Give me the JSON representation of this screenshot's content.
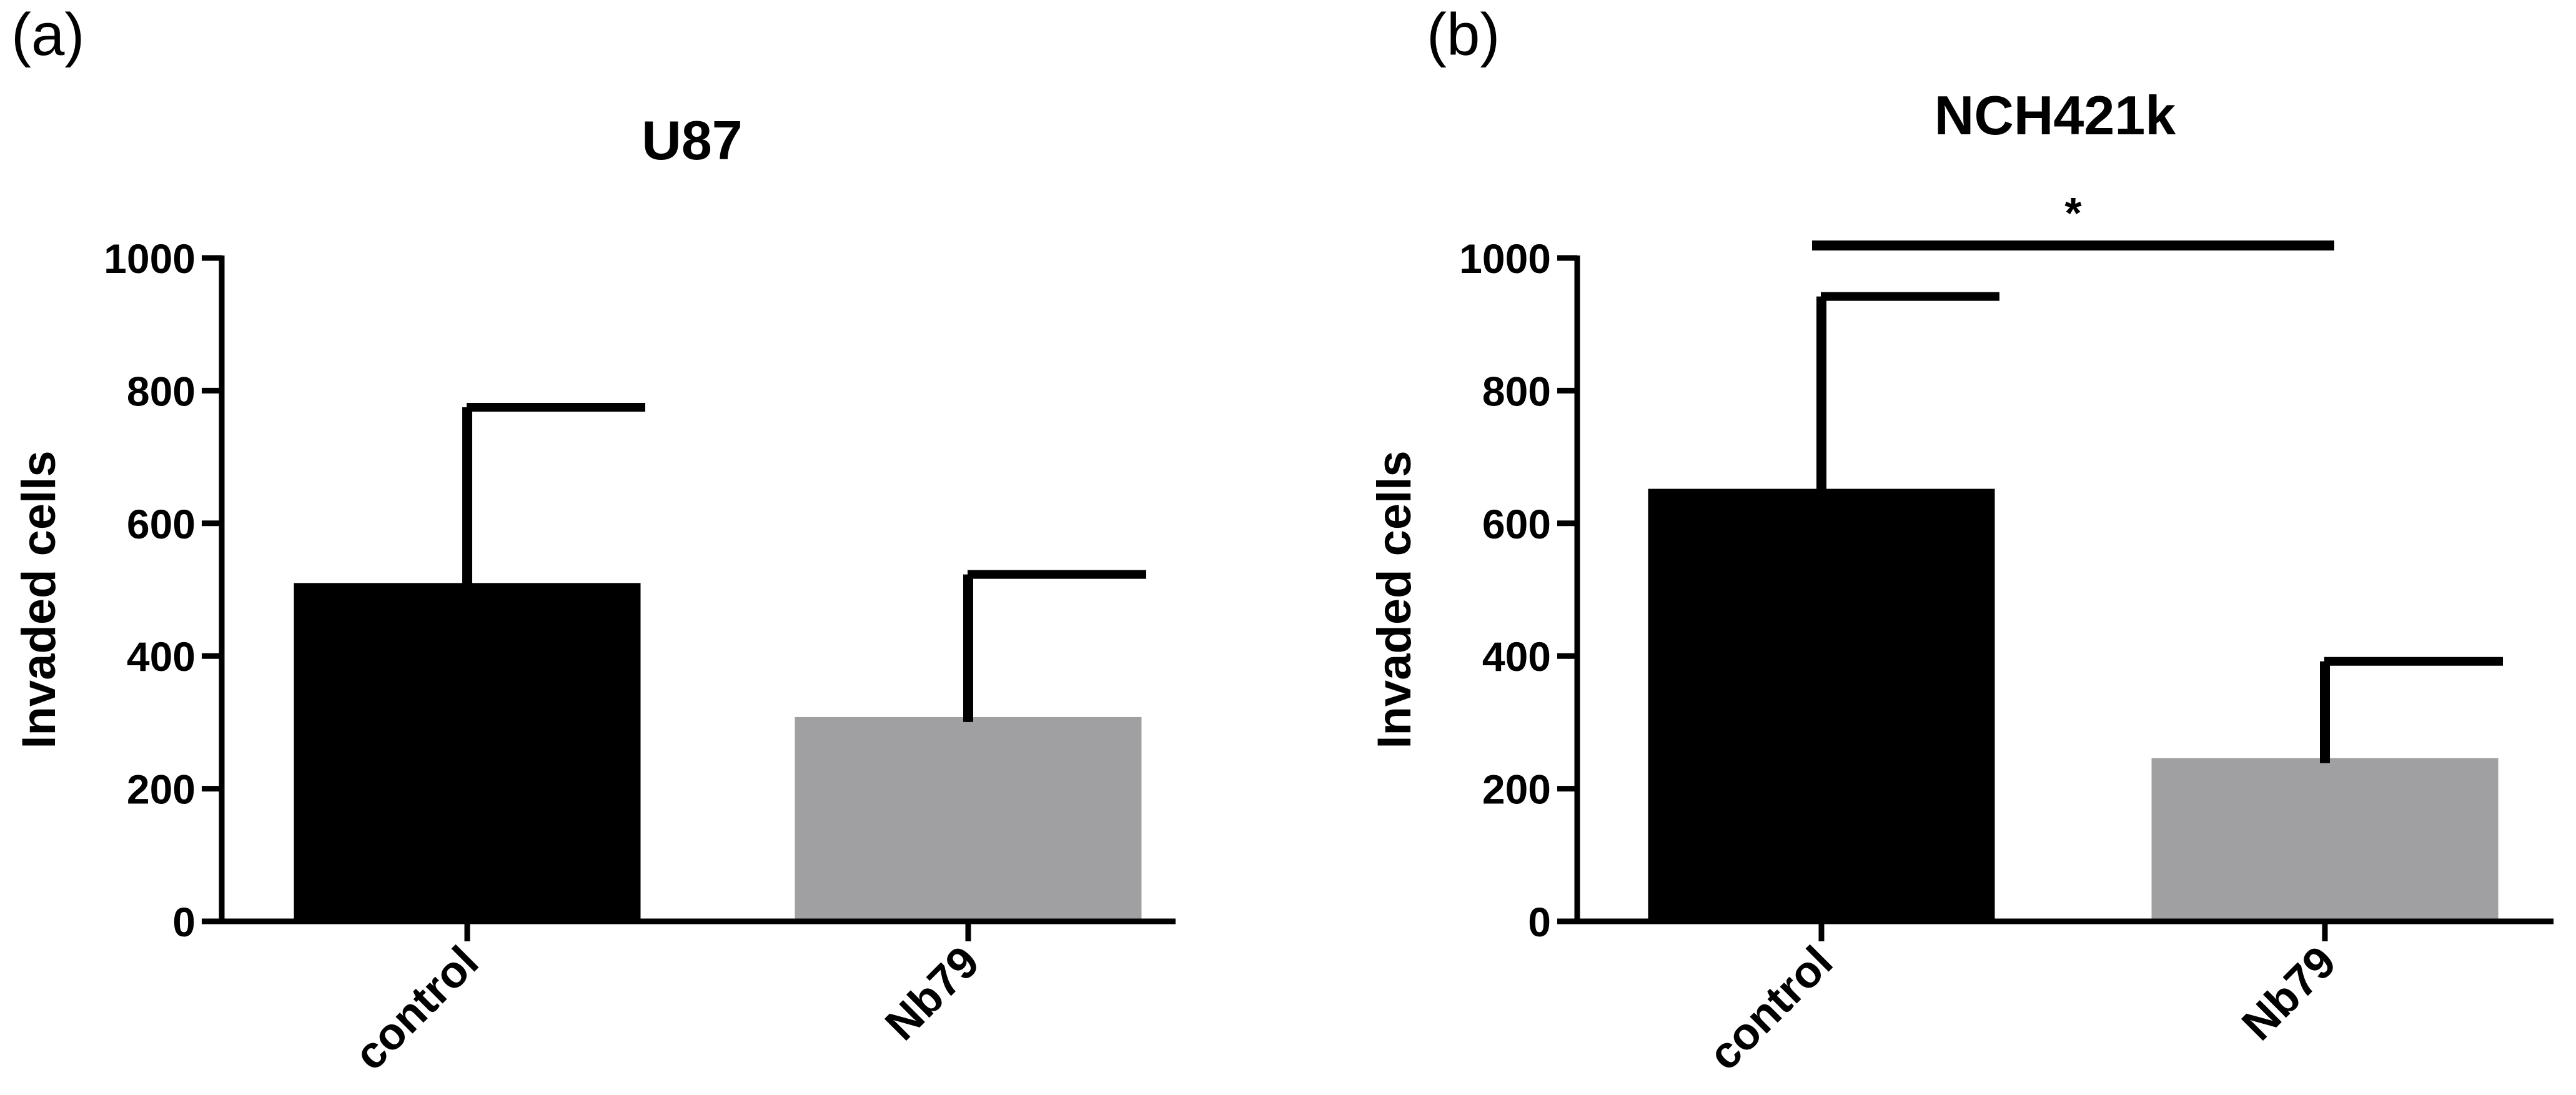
{
  "chart_data": [
    {
      "type": "bar",
      "panel": "(a)",
      "title": "U87",
      "xlabel": "",
      "ylabel": "Invaded cells",
      "ylim": [
        0,
        1000
      ],
      "yticks": [
        0,
        200,
        400,
        600,
        800,
        1000
      ],
      "categories": [
        "control",
        "Nb79"
      ],
      "values": [
        510,
        308
      ],
      "errors": [
        265,
        215
      ],
      "colors": [
        "#000000",
        "#a0a0a2"
      ],
      "significance": null
    },
    {
      "type": "bar",
      "panel": "(b)",
      "title": "NCH421k",
      "xlabel": "",
      "ylabel": "Invaded cells",
      "ylim": [
        0,
        1000
      ],
      "yticks": [
        0,
        200,
        400,
        600,
        800,
        1000
      ],
      "categories": [
        "control",
        "Nb79"
      ],
      "values": [
        652,
        246
      ],
      "errors": [
        290,
        146
      ],
      "colors": [
        "#000000",
        "#a0a0a2"
      ],
      "significance": "*"
    }
  ]
}
